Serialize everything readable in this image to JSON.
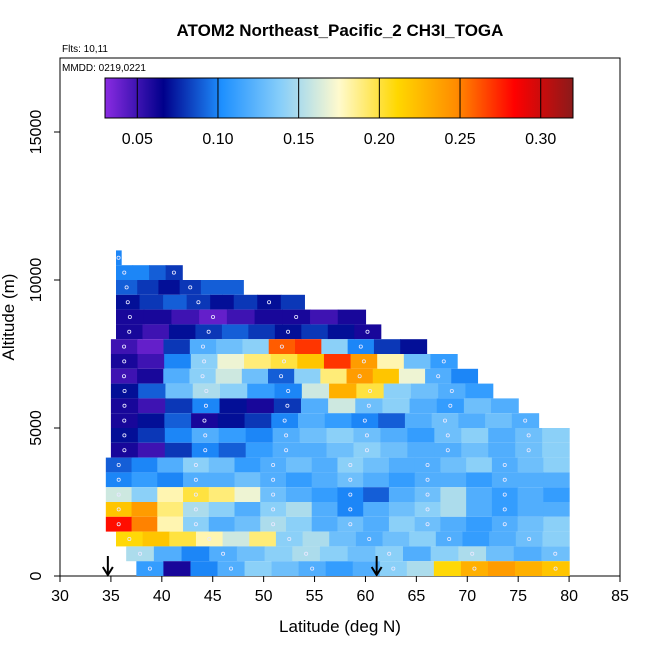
{
  "chart_data": {
    "type": "heatmap",
    "title": "ATOM2 Northeast_Pacific_2 CH3I_TOGA",
    "flights_label": "Flts: 10,11",
    "dates_label": "MMDD: 0219,0221",
    "xlabel": "Latitude (deg N)",
    "ylabel": "Altitude (m)",
    "xlim": [
      30,
      85
    ],
    "ylim": [
      0,
      17500
    ],
    "x_ticks": [
      "30",
      "35",
      "40",
      "45",
      "50",
      "55",
      "60",
      "65",
      "70",
      "75",
      "80",
      "85"
    ],
    "y_ticks": [
      "0",
      "5000",
      "10000",
      "15000"
    ],
    "colorbar": {
      "range": [
        0.03,
        0.32
      ],
      "ticks": [
        "0.05",
        "0.10",
        "0.15",
        "0.20",
        "0.25",
        "0.30"
      ],
      "stops": [
        "#8a2be2",
        "#00008b",
        "#1e90ff",
        "#87cefa",
        "#fffacd",
        "#ffd700",
        "#ff8c00",
        "#ff0000",
        "#8b1a1a"
      ]
    },
    "markers": [
      {
        "label": "arrow",
        "lat": 34.7
      },
      {
        "label": "arrow",
        "lat": 61.1
      }
    ],
    "segments": [
      {
        "alt": [
          10500,
          11000
        ],
        "lat": [
          35.5,
          36.0
        ],
        "values": [
          0.1
        ]
      },
      {
        "alt": [
          10000,
          10500
        ],
        "lat": [
          35.5,
          42.0
        ],
        "values": [
          0.1,
          0.1,
          0.09,
          0.08
        ]
      },
      {
        "alt": [
          9500,
          10000
        ],
        "lat": [
          35.5,
          48.0
        ],
        "values": [
          0.09,
          0.08,
          0.07,
          0.08,
          0.09,
          0.09
        ]
      },
      {
        "alt": [
          9000,
          9500
        ],
        "lat": [
          35.5,
          54.0
        ],
        "values": [
          0.07,
          0.08,
          0.09,
          0.08,
          0.07,
          0.08,
          0.07,
          0.08
        ]
      },
      {
        "alt": [
          8500,
          9000
        ],
        "lat": [
          35.5,
          60.0
        ],
        "values": [
          0.06,
          0.06,
          0.05,
          0.04,
          0.05,
          0.06,
          0.06,
          0.05,
          0.06
        ]
      },
      {
        "alt": [
          8000,
          8500
        ],
        "lat": [
          35.5,
          61.5
        ],
        "values": [
          0.06,
          0.05,
          0.07,
          0.08,
          0.09,
          0.08,
          0.07,
          0.08,
          0.07,
          0.06
        ]
      },
      {
        "alt": [
          7500,
          8000
        ],
        "lat": [
          35.0,
          66.0
        ],
        "values": [
          0.05,
          0.04,
          0.08,
          0.12,
          0.13,
          0.14,
          0.26,
          0.27,
          0.14,
          0.1,
          0.08,
          0.07
        ]
      },
      {
        "alt": [
          7000,
          7500
        ],
        "lat": [
          35.0,
          69.0
        ],
        "values": [
          0.06,
          0.05,
          0.1,
          0.14,
          0.17,
          0.19,
          0.2,
          0.22,
          0.27,
          0.24,
          0.18,
          0.13,
          0.11
        ]
      },
      {
        "alt": [
          6500,
          7000
        ],
        "lat": [
          35.0,
          71.0
        ],
        "values": [
          0.05,
          0.06,
          0.12,
          0.14,
          0.16,
          0.13,
          0.09,
          0.14,
          0.19,
          0.24,
          0.22,
          0.17,
          0.12,
          0.1
        ]
      },
      {
        "alt": [
          6000,
          6500
        ],
        "lat": [
          35.0,
          72.5
        ],
        "values": [
          0.07,
          0.09,
          0.13,
          0.15,
          0.14,
          0.11,
          0.1,
          0.16,
          0.23,
          0.2,
          0.14,
          0.13,
          0.12,
          0.11
        ]
      },
      {
        "alt": [
          5500,
          6000
        ],
        "lat": [
          35.0,
          75.0
        ],
        "values": [
          0.06,
          0.05,
          0.08,
          0.1,
          0.07,
          0.06,
          0.08,
          0.12,
          0.16,
          0.13,
          0.14,
          0.12,
          0.11,
          0.13,
          0.12
        ]
      },
      {
        "alt": [
          5000,
          5500
        ],
        "lat": [
          35.0,
          77.0
        ],
        "values": [
          0.06,
          0.07,
          0.09,
          0.06,
          0.07,
          0.08,
          0.1,
          0.12,
          0.11,
          0.1,
          0.09,
          0.12,
          0.13,
          0.12,
          0.13,
          0.12
        ]
      },
      {
        "alt": [
          4500,
          5000
        ],
        "lat": [
          35.0,
          80.0
        ],
        "values": [
          0.07,
          0.08,
          0.1,
          0.12,
          0.11,
          0.1,
          0.12,
          0.13,
          0.14,
          0.13,
          0.12,
          0.11,
          0.13,
          0.14,
          0.12,
          0.13,
          0.14
        ]
      },
      {
        "alt": [
          4000,
          4500
        ],
        "lat": [
          35.0,
          80.0
        ],
        "values": [
          0.06,
          0.05,
          0.08,
          0.1,
          0.09,
          0.11,
          0.12,
          0.12,
          0.13,
          0.14,
          0.13,
          0.12,
          0.12,
          0.13,
          0.12,
          0.13,
          0.14
        ]
      },
      {
        "alt": [
          3500,
          4000
        ],
        "lat": [
          34.5,
          80.0
        ],
        "values": [
          0.09,
          0.1,
          0.12,
          0.14,
          0.13,
          0.11,
          0.12,
          0.13,
          0.12,
          0.14,
          0.13,
          0.12,
          0.12,
          0.13,
          0.14,
          0.12,
          0.13,
          0.14
        ]
      },
      {
        "alt": [
          3000,
          3500
        ],
        "lat": [
          34.5,
          80.0
        ],
        "values": [
          0.1,
          0.11,
          0.1,
          0.12,
          0.12,
          0.13,
          0.12,
          0.11,
          0.12,
          0.13,
          0.12,
          0.11,
          0.12,
          0.12,
          0.11,
          0.12,
          0.12,
          0.12
        ]
      },
      {
        "alt": [
          2500,
          3000
        ],
        "lat": [
          34.5,
          80.0
        ],
        "values": [
          0.16,
          0.14,
          0.18,
          0.2,
          0.19,
          0.17,
          0.13,
          0.12,
          0.11,
          0.1,
          0.09,
          0.12,
          0.13,
          0.15,
          0.12,
          0.11,
          0.12,
          0.11
        ]
      },
      {
        "alt": [
          2000,
          2500
        ],
        "lat": [
          34.5,
          80.0
        ],
        "values": [
          0.22,
          0.24,
          0.19,
          0.15,
          0.14,
          0.12,
          0.14,
          0.15,
          0.12,
          0.1,
          0.12,
          0.13,
          0.14,
          0.15,
          0.12,
          0.11,
          0.12,
          0.12
        ]
      },
      {
        "alt": [
          1500,
          2000
        ],
        "lat": [
          34.5,
          80.0
        ],
        "values": [
          0.28,
          0.25,
          0.18,
          0.14,
          0.12,
          0.13,
          0.15,
          0.14,
          0.12,
          0.13,
          0.12,
          0.14,
          0.13,
          0.12,
          0.11,
          0.12,
          0.13,
          0.14
        ]
      },
      {
        "alt": [
          1000,
          1500
        ],
        "lat": [
          35.5,
          80.0
        ],
        "values": [
          0.21,
          0.22,
          0.2,
          0.18,
          0.16,
          0.19,
          0.14,
          0.15,
          0.13,
          0.12,
          0.13,
          0.14,
          0.12,
          0.11,
          0.12,
          0.13,
          0.14
        ]
      },
      {
        "alt": [
          500,
          1000
        ],
        "lat": [
          36.5,
          80.0
        ],
        "values": [
          0.15,
          0.12,
          0.1,
          0.12,
          0.13,
          0.14,
          0.15,
          0.14,
          0.13,
          0.14,
          0.12,
          0.14,
          0.15,
          0.13,
          0.12,
          0.13
        ]
      },
      {
        "alt": [
          0,
          500
        ],
        "lat": [
          37.5,
          80.0
        ],
        "values": [
          0.11,
          0.06,
          0.1,
          0.12,
          0.14,
          0.13,
          0.12,
          0.11,
          0.12,
          0.14,
          0.15,
          0.21,
          0.23,
          0.24,
          0.23,
          0.22
        ]
      }
    ]
  }
}
